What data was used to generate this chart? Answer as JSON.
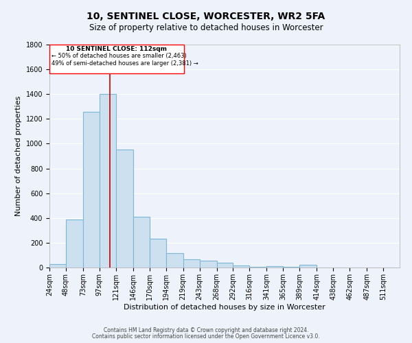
{
  "title1": "10, SENTINEL CLOSE, WORCESTER, WR2 5FA",
  "title2": "Size of property relative to detached houses in Worcester",
  "xlabel": "Distribution of detached houses by size in Worcester",
  "ylabel": "Number of detached properties",
  "footer1": "Contains HM Land Registry data © Crown copyright and database right 2024.",
  "footer2": "Contains public sector information licensed under the Open Government Licence v3.0.",
  "annotation_line1": "10 SENTINEL CLOSE: 112sqm",
  "annotation_line2": "← 50% of detached houses are smaller (2,463)",
  "annotation_line3": "49% of semi-detached houses are larger (2,381) →",
  "property_size": 112,
  "bar_edge_color": "#7ab8d9",
  "bar_face_color": "#cce0f0",
  "bar_linewidth": 0.8,
  "vline_color": "#cc0000",
  "vline_linewidth": 1.2,
  "background_color": "#eef2fb",
  "grid_color": "#ffffff",
  "categories": [
    "24sqm",
    "48sqm",
    "73sqm",
    "97sqm",
    "121sqm",
    "146sqm",
    "170sqm",
    "194sqm",
    "219sqm",
    "243sqm",
    "268sqm",
    "292sqm",
    "316sqm",
    "341sqm",
    "365sqm",
    "389sqm",
    "414sqm",
    "438sqm",
    "462sqm",
    "487sqm",
    "511sqm"
  ],
  "bin_edges": [
    24,
    48,
    73,
    97,
    121,
    146,
    170,
    194,
    219,
    243,
    268,
    292,
    316,
    341,
    365,
    389,
    414,
    438,
    462,
    487,
    511
  ],
  "values": [
    25,
    390,
    1260,
    1400,
    950,
    410,
    230,
    115,
    65,
    55,
    40,
    15,
    8,
    12,
    5,
    20,
    0,
    0,
    0,
    0,
    0
  ],
  "ylim": [
    0,
    1800
  ],
  "yticks": [
    0,
    200,
    400,
    600,
    800,
    1000,
    1200,
    1400,
    1600,
    1800
  ],
  "title1_fontsize": 10,
  "title2_fontsize": 8.5,
  "xlabel_fontsize": 8,
  "ylabel_fontsize": 8,
  "tick_fontsize": 7,
  "footer_fontsize": 5.5,
  "annot_fontsize_title": 6.5,
  "annot_fontsize_body": 6.0
}
